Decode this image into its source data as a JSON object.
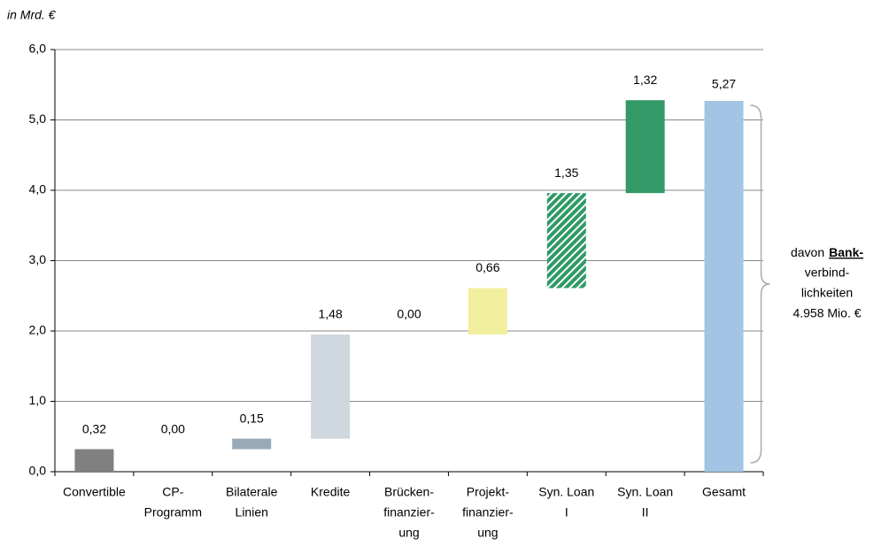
{
  "chart_data": {
    "type": "waterfall",
    "unit_label": "in Mrd. €",
    "categories": [
      [
        "Convertible"
      ],
      [
        "CP-",
        "Programm"
      ],
      [
        "Bilaterale",
        "Linien"
      ],
      [
        "Kredite"
      ],
      [
        "Brücken-",
        "finanzier-",
        "ung"
      ],
      [
        "Projekt-",
        "finanzier-",
        "ung"
      ],
      [
        "Syn. Loan",
        "I"
      ],
      [
        "Syn. Loan",
        "II"
      ]
    ],
    "values": [
      0.32,
      0,
      0.15,
      1.48,
      0,
      0.66,
      1.35,
      1.32
    ],
    "value_labels": [
      "0,32",
      "0,00",
      "0,15",
      "1,48",
      "0,00",
      "0,66",
      "1,35",
      "1,32"
    ],
    "colors": [
      "#808080",
      "#808080",
      "#98aab8",
      "#cfd8de",
      "#cfd8de",
      "#f2ef9f",
      "#2e9a66",
      "#339966"
    ],
    "hatched": [
      false,
      false,
      false,
      false,
      false,
      false,
      true,
      false
    ],
    "total": {
      "name": "Gesamt",
      "value": 5.27,
      "label": "5,27",
      "color": "#a3c4e4"
    },
    "ylim": [
      0,
      6
    ],
    "yticks": [
      {
        "value": 0,
        "label": "0,0"
      },
      {
        "value": 1,
        "label": "1,0"
      },
      {
        "value": 2,
        "label": "2,0"
      },
      {
        "value": 3,
        "label": "3,0"
      },
      {
        "value": 4,
        "label": "4,0"
      },
      {
        "value": 5,
        "label": "5,0"
      },
      {
        "value": 6,
        "label": "6,0"
      }
    ],
    "grid": true,
    "annotation": {
      "prefix": "davon",
      "bold": "Bank-",
      "lines": [
        "verbind-",
        "lichkeiten",
        "4.958 Mio. €"
      ]
    }
  }
}
